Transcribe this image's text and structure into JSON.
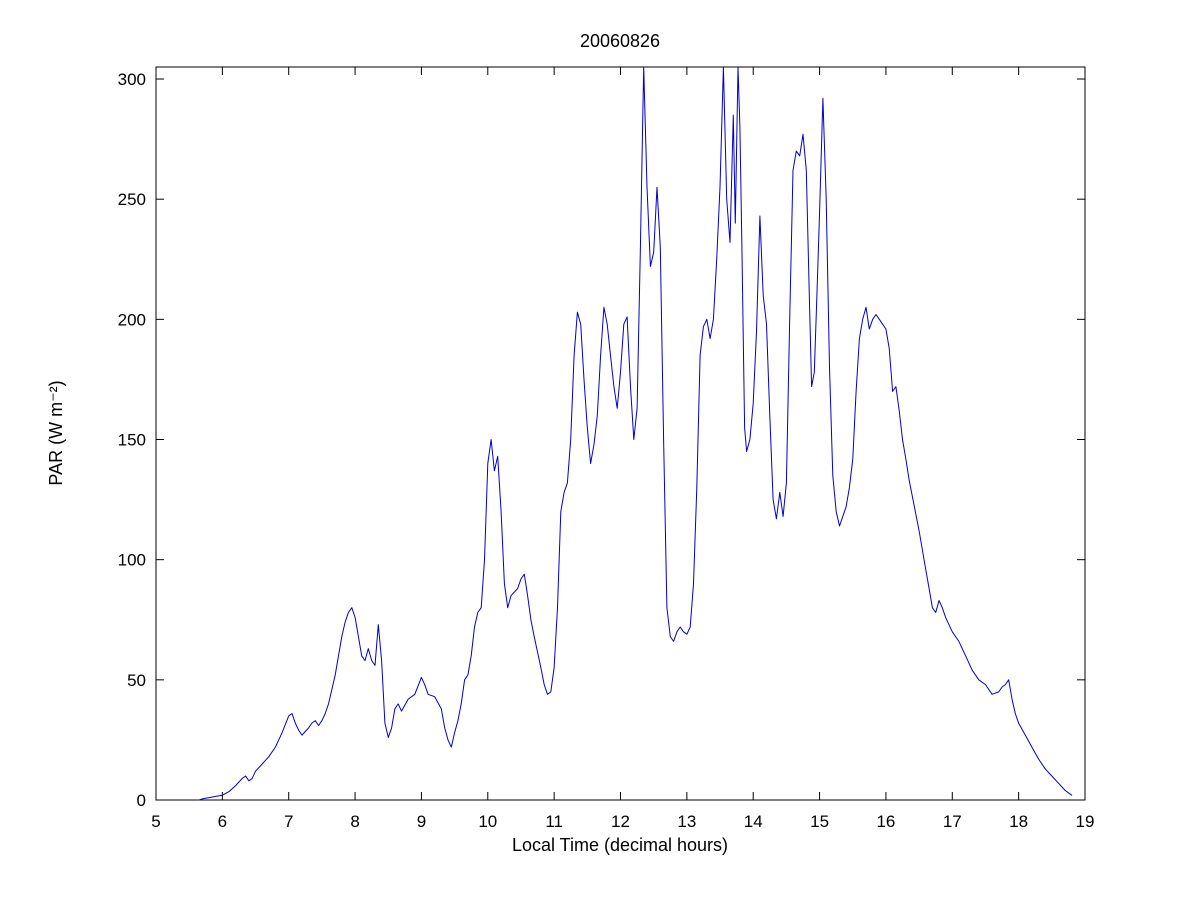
{
  "figure": {
    "title": "20060826",
    "xlabel": "Local Time (decimal hours)",
    "ylabel": "PAR (W m⁻²)"
  },
  "chart_data": {
    "type": "line",
    "title": "20060826",
    "xlabel": "Local Time (decimal hours)",
    "ylabel": "PAR (W m⁻²)",
    "xlim": [
      5,
      19
    ],
    "ylim": [
      0,
      305
    ],
    "xticks": [
      5,
      6,
      7,
      8,
      9,
      10,
      11,
      12,
      13,
      14,
      15,
      16,
      17,
      18,
      19
    ],
    "yticks": [
      0,
      50,
      100,
      150,
      200,
      250,
      300
    ],
    "grid": false,
    "legend": "none",
    "line_color": "#0000cc",
    "axis_color": "#000000",
    "background": "#ffffff",
    "points": [
      [
        5.65,
        0
      ],
      [
        5.7,
        0.5
      ],
      [
        5.8,
        1
      ],
      [
        5.9,
        1.5
      ],
      [
        6.0,
        2
      ],
      [
        6.1,
        3.5
      ],
      [
        6.2,
        6
      ],
      [
        6.3,
        9
      ],
      [
        6.35,
        10
      ],
      [
        6.4,
        8
      ],
      [
        6.45,
        9
      ],
      [
        6.5,
        12
      ],
      [
        6.6,
        15
      ],
      [
        6.7,
        18
      ],
      [
        6.8,
        22
      ],
      [
        6.9,
        28
      ],
      [
        7.0,
        35
      ],
      [
        7.05,
        36
      ],
      [
        7.1,
        32
      ],
      [
        7.15,
        29
      ],
      [
        7.2,
        27
      ],
      [
        7.3,
        30
      ],
      [
        7.35,
        32
      ],
      [
        7.4,
        33
      ],
      [
        7.45,
        31
      ],
      [
        7.5,
        33
      ],
      [
        7.55,
        36
      ],
      [
        7.6,
        40
      ],
      [
        7.7,
        52
      ],
      [
        7.8,
        68
      ],
      [
        7.85,
        74
      ],
      [
        7.9,
        78
      ],
      [
        7.95,
        80
      ],
      [
        8.0,
        76
      ],
      [
        8.05,
        68
      ],
      [
        8.1,
        60
      ],
      [
        8.15,
        58
      ],
      [
        8.2,
        63
      ],
      [
        8.25,
        58
      ],
      [
        8.3,
        56
      ],
      [
        8.35,
        73
      ],
      [
        8.4,
        58
      ],
      [
        8.45,
        32
      ],
      [
        8.5,
        26
      ],
      [
        8.55,
        30
      ],
      [
        8.6,
        38
      ],
      [
        8.65,
        40
      ],
      [
        8.7,
        37
      ],
      [
        8.8,
        42
      ],
      [
        8.9,
        44
      ],
      [
        9.0,
        51
      ],
      [
        9.05,
        48
      ],
      [
        9.1,
        44
      ],
      [
        9.2,
        43
      ],
      [
        9.3,
        38
      ],
      [
        9.35,
        30
      ],
      [
        9.4,
        25
      ],
      [
        9.45,
        22
      ],
      [
        9.5,
        28
      ],
      [
        9.55,
        33
      ],
      [
        9.6,
        40
      ],
      [
        9.65,
        50
      ],
      [
        9.7,
        52
      ],
      [
        9.75,
        60
      ],
      [
        9.8,
        72
      ],
      [
        9.85,
        78
      ],
      [
        9.9,
        80
      ],
      [
        9.95,
        100
      ],
      [
        10.0,
        140
      ],
      [
        10.05,
        150
      ],
      [
        10.1,
        137
      ],
      [
        10.15,
        143
      ],
      [
        10.2,
        120
      ],
      [
        10.25,
        90
      ],
      [
        10.3,
        80
      ],
      [
        10.35,
        85
      ],
      [
        10.45,
        88
      ],
      [
        10.5,
        92
      ],
      [
        10.55,
        94
      ],
      [
        10.6,
        85
      ],
      [
        10.65,
        75
      ],
      [
        10.7,
        68
      ],
      [
        10.8,
        55
      ],
      [
        10.85,
        48
      ],
      [
        10.9,
        44
      ],
      [
        10.95,
        45
      ],
      [
        11.0,
        55
      ],
      [
        11.05,
        80
      ],
      [
        11.1,
        120
      ],
      [
        11.15,
        128
      ],
      [
        11.2,
        132
      ],
      [
        11.25,
        150
      ],
      [
        11.3,
        185
      ],
      [
        11.35,
        203
      ],
      [
        11.4,
        198
      ],
      [
        11.45,
        175
      ],
      [
        11.5,
        155
      ],
      [
        11.55,
        140
      ],
      [
        11.6,
        148
      ],
      [
        11.65,
        160
      ],
      [
        11.7,
        185
      ],
      [
        11.75,
        205
      ],
      [
        11.8,
        198
      ],
      [
        11.85,
        185
      ],
      [
        11.9,
        172
      ],
      [
        11.95,
        163
      ],
      [
        12.0,
        178
      ],
      [
        12.05,
        198
      ],
      [
        12.1,
        201
      ],
      [
        12.15,
        172
      ],
      [
        12.2,
        150
      ],
      [
        12.25,
        163
      ],
      [
        12.3,
        230
      ],
      [
        12.35,
        305
      ],
      [
        12.4,
        255
      ],
      [
        12.45,
        222
      ],
      [
        12.5,
        228
      ],
      [
        12.55,
        255
      ],
      [
        12.6,
        230
      ],
      [
        12.65,
        150
      ],
      [
        12.7,
        80
      ],
      [
        12.75,
        68
      ],
      [
        12.8,
        66
      ],
      [
        12.85,
        70
      ],
      [
        12.9,
        72
      ],
      [
        12.95,
        70
      ],
      [
        13.0,
        69
      ],
      [
        13.05,
        72
      ],
      [
        13.1,
        90
      ],
      [
        13.15,
        130
      ],
      [
        13.2,
        185
      ],
      [
        13.25,
        197
      ],
      [
        13.3,
        200
      ],
      [
        13.35,
        192
      ],
      [
        13.4,
        200
      ],
      [
        13.45,
        225
      ],
      [
        13.5,
        255
      ],
      [
        13.55,
        305
      ],
      [
        13.6,
        250
      ],
      [
        13.65,
        232
      ],
      [
        13.7,
        285
      ],
      [
        13.73,
        240
      ],
      [
        13.77,
        305
      ],
      [
        13.8,
        280
      ],
      [
        13.83,
        230
      ],
      [
        13.87,
        155
      ],
      [
        13.9,
        145
      ],
      [
        13.95,
        150
      ],
      [
        14.0,
        165
      ],
      [
        14.05,
        195
      ],
      [
        14.1,
        243
      ],
      [
        14.15,
        210
      ],
      [
        14.2,
        198
      ],
      [
        14.25,
        160
      ],
      [
        14.3,
        125
      ],
      [
        14.35,
        117
      ],
      [
        14.4,
        128
      ],
      [
        14.45,
        118
      ],
      [
        14.5,
        132
      ],
      [
        14.55,
        200
      ],
      [
        14.6,
        262
      ],
      [
        14.65,
        270
      ],
      [
        14.7,
        268
      ],
      [
        14.75,
        277
      ],
      [
        14.8,
        262
      ],
      [
        14.85,
        205
      ],
      [
        14.88,
        172
      ],
      [
        14.92,
        178
      ],
      [
        14.96,
        210
      ],
      [
        15.0,
        245
      ],
      [
        15.05,
        292
      ],
      [
        15.1,
        250
      ],
      [
        15.15,
        180
      ],
      [
        15.2,
        135
      ],
      [
        15.25,
        120
      ],
      [
        15.3,
        114
      ],
      [
        15.35,
        118
      ],
      [
        15.4,
        122
      ],
      [
        15.45,
        130
      ],
      [
        15.5,
        142
      ],
      [
        15.55,
        170
      ],
      [
        15.6,
        192
      ],
      [
        15.65,
        200
      ],
      [
        15.7,
        205
      ],
      [
        15.75,
        196
      ],
      [
        15.8,
        200
      ],
      [
        15.85,
        202
      ],
      [
        15.9,
        200
      ],
      [
        15.95,
        198
      ],
      [
        16.0,
        196
      ],
      [
        16.05,
        188
      ],
      [
        16.1,
        170
      ],
      [
        16.15,
        172
      ],
      [
        16.2,
        162
      ],
      [
        16.25,
        150
      ],
      [
        16.3,
        142
      ],
      [
        16.35,
        133
      ],
      [
        16.4,
        126
      ],
      [
        16.5,
        112
      ],
      [
        16.6,
        96
      ],
      [
        16.65,
        88
      ],
      [
        16.7,
        80
      ],
      [
        16.75,
        78
      ],
      [
        16.8,
        83
      ],
      [
        16.85,
        80
      ],
      [
        16.9,
        76
      ],
      [
        17.0,
        70
      ],
      [
        17.1,
        66
      ],
      [
        17.2,
        60
      ],
      [
        17.3,
        54
      ],
      [
        17.4,
        50
      ],
      [
        17.5,
        48
      ],
      [
        17.6,
        44
      ],
      [
        17.7,
        45
      ],
      [
        17.75,
        47
      ],
      [
        17.8,
        48
      ],
      [
        17.85,
        50
      ],
      [
        17.9,
        42
      ],
      [
        17.95,
        36
      ],
      [
        18.0,
        32
      ],
      [
        18.1,
        27
      ],
      [
        18.2,
        22
      ],
      [
        18.3,
        17
      ],
      [
        18.4,
        13
      ],
      [
        18.5,
        10
      ],
      [
        18.6,
        7
      ],
      [
        18.7,
        4
      ],
      [
        18.75,
        3
      ],
      [
        18.8,
        2
      ]
    ]
  }
}
